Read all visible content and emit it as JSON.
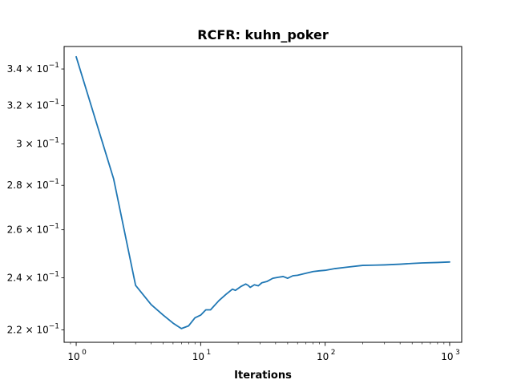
{
  "chart_data": {
    "type": "line",
    "title": "RCFR: kuhn_poker",
    "xlabel": "Iterations",
    "ylabel": "",
    "xscale": "log",
    "yscale": "log",
    "xlim": [
      0.8,
      1250
    ],
    "ylim": [
      0.2155,
      0.353
    ],
    "grid": false,
    "x_ticks": [
      {
        "value": 1,
        "label": "10",
        "exp": "0"
      },
      {
        "value": 10,
        "label": "10",
        "exp": "1"
      },
      {
        "value": 100,
        "label": "10",
        "exp": "2"
      },
      {
        "value": 1000,
        "label": "10",
        "exp": "3"
      }
    ],
    "y_ticks": [
      {
        "value": 0.22,
        "label": "2.2 × 10",
        "exp": "−1"
      },
      {
        "value": 0.24,
        "label": "2.4 × 10",
        "exp": "−1"
      },
      {
        "value": 0.26,
        "label": "2.6 × 10",
        "exp": "−1"
      },
      {
        "value": 0.28,
        "label": "2.8 × 10",
        "exp": "−1"
      },
      {
        "value": 0.3,
        "label": "3 × 10",
        "exp": "−1"
      },
      {
        "value": 0.32,
        "label": "3.2 × 10",
        "exp": "−1"
      },
      {
        "value": 0.34,
        "label": "3.4 × 10",
        "exp": "−1"
      }
    ],
    "series": [
      {
        "color": "#1f77b4",
        "x": [
          1,
          2,
          3,
          4,
          5,
          6,
          7,
          8,
          9,
          10,
          11,
          12,
          14,
          16,
          18,
          19,
          21,
          23,
          24,
          25,
          27,
          29,
          31,
          34,
          38,
          42,
          46,
          50,
          55,
          60,
          70,
          80,
          90,
          100,
          120,
          150,
          200,
          250,
          300,
          400,
          500,
          600,
          800,
          1000
        ],
        "y": [
          0.347,
          0.283,
          0.237,
          0.2295,
          0.2255,
          0.2225,
          0.2205,
          0.2215,
          0.2245,
          0.2255,
          0.2275,
          0.2275,
          0.231,
          0.2335,
          0.2355,
          0.235,
          0.2365,
          0.2375,
          0.237,
          0.2362,
          0.2372,
          0.2368,
          0.238,
          0.2385,
          0.2398,
          0.2402,
          0.2405,
          0.2398,
          0.2408,
          0.241,
          0.2418,
          0.2425,
          0.2428,
          0.243,
          0.2437,
          0.2443,
          0.245,
          0.2451,
          0.2452,
          0.2455,
          0.2458,
          0.246,
          0.2462,
          0.2464
        ]
      }
    ]
  }
}
